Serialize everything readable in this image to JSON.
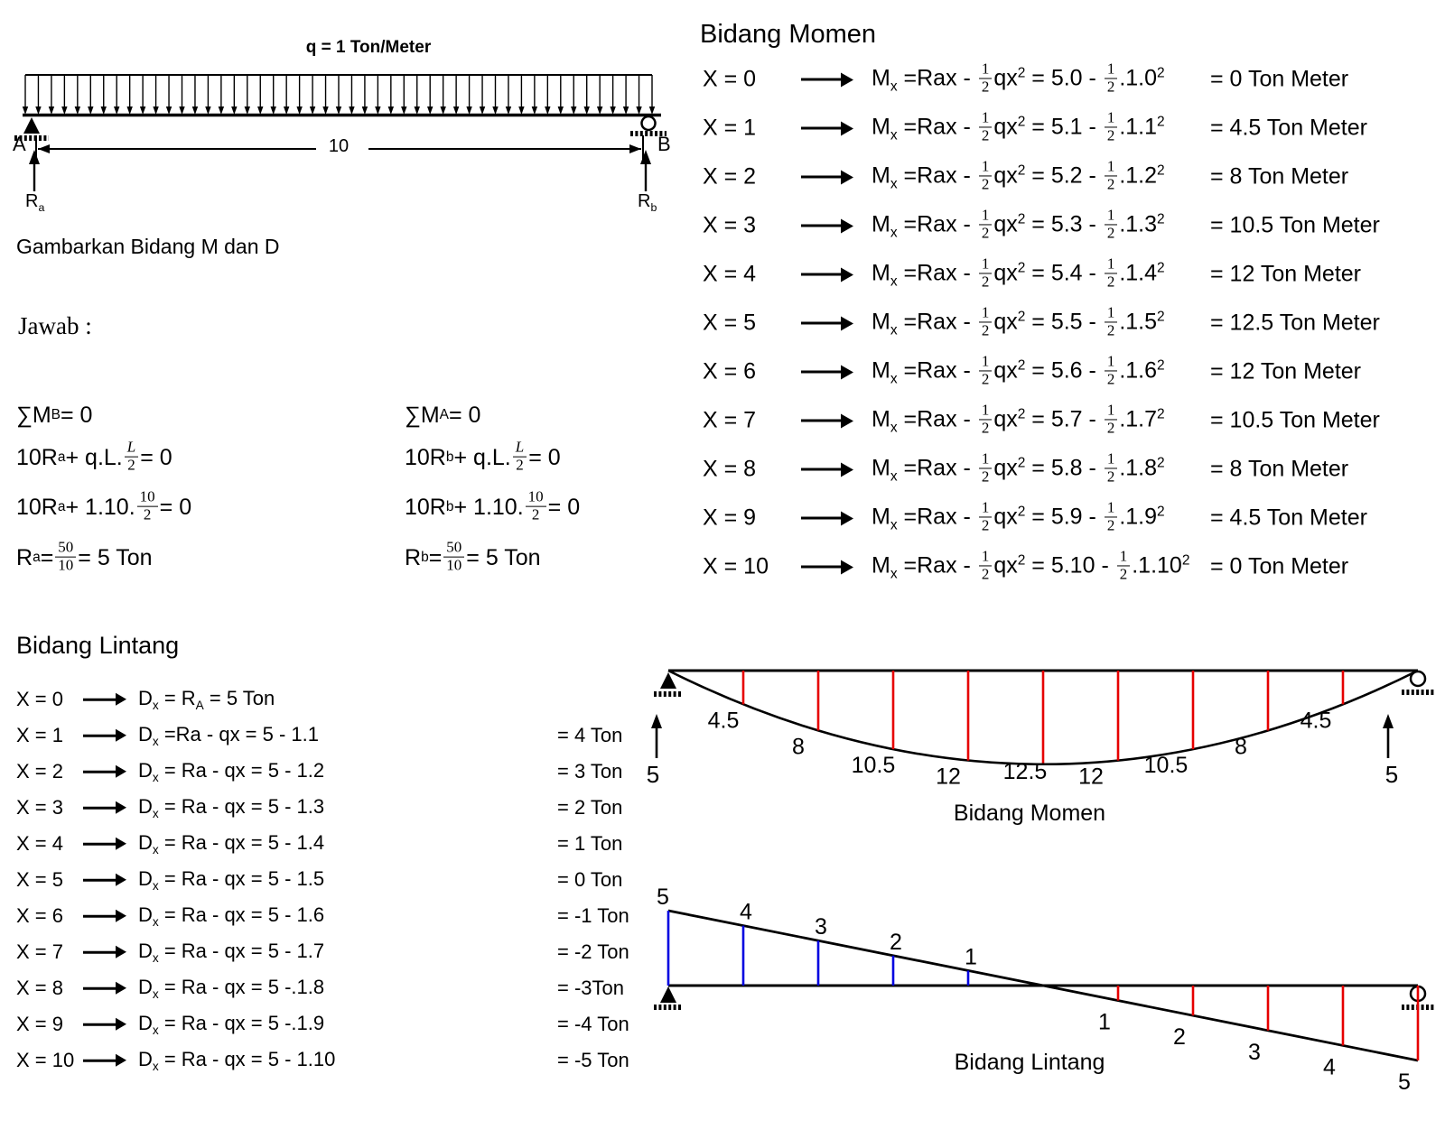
{
  "beam_figure": {
    "load_label": "q = 1 Ton/Meter",
    "support_a_label": "A",
    "support_b_label": "B",
    "span_label": "10",
    "reaction_a_label": "R~a~",
    "reaction_b_label": "R~b~"
  },
  "prompt_text": "Gambarkan Bidang M dan D",
  "answer_heading": "Jawab :",
  "reaction_equations": {
    "left": [
      "∑M~B~ = 0",
      "10R~a~ + q.L.{*L*/2} = 0",
      "10R~a~ + 1.10.{10/2} = 0",
      "R~a~ = {50/10} = 5 Ton"
    ],
    "right": [
      "∑M~A~ = 0",
      "10R~b~ + q.L.{*L*/2} = 0",
      "10R~b~ + 1.10.{10/2} = 0",
      "R~b~ = {50/10} = 5 Ton"
    ]
  },
  "momen_section": {
    "title": "Bidang Momen",
    "rows": [
      {
        "x": "X = 0",
        "eq": "M~x~ =Rax - {1/2}qx^2^ = 5.0 - {1/2}.1.0^2^",
        "result": "= 0 Ton Meter"
      },
      {
        "x": "X = 1",
        "eq": "M~x~ =Rax - {1/2}qx^2^ = 5.1 - {1/2}.1.1^2^",
        "result": "= 4.5 Ton Meter"
      },
      {
        "x": "X = 2",
        "eq": "M~x~ =Rax - {1/2}qx^2^ = 5.2 - {1/2}.1.2^2^",
        "result": "= 8 Ton Meter"
      },
      {
        "x": "X = 3",
        "eq": "M~x~ =Rax - {1/2}qx^2^ = 5.3 - {1/2}.1.3^2^",
        "result": "= 10.5 Ton Meter"
      },
      {
        "x": "X = 4",
        "eq": "M~x~ =Rax - {1/2}qx^2^ = 5.4 - {1/2}.1.4^2^",
        "result": "= 12 Ton Meter"
      },
      {
        "x": "X = 5",
        "eq": "M~x~ =Rax - {1/2}qx^2^ = 5.5 - {1/2}.1.5^2^",
        "result": "= 12.5 Ton Meter"
      },
      {
        "x": "X = 6",
        "eq": "M~x~ =Rax - {1/2}qx^2^ = 5.6 - {1/2}.1.6^2^",
        "result": "= 12 Ton Meter"
      },
      {
        "x": "X = 7",
        "eq": "M~x~ =Rax - {1/2}qx^2^ = 5.7 - {1/2}.1.7^2^",
        "result": "= 10.5 Ton Meter"
      },
      {
        "x": "X = 8",
        "eq": "M~x~ =Rax - {1/2}qx^2^ = 5.8 - {1/2}.1.8^2^",
        "result": "= 8 Ton Meter"
      },
      {
        "x": "X = 9",
        "eq": "M~x~ =Rax - {1/2}qx^2^ = 5.9 - {1/2}.1.9^2^",
        "result": "= 4.5 Ton Meter"
      },
      {
        "x": "X = 10",
        "eq": "M~x~ =Rax - {1/2}qx^2^ = 5.10 - {1/2}.1.10^2^",
        "result": "= 0 Ton Meter"
      }
    ]
  },
  "lintang_section": {
    "title": "Bidang Lintang",
    "rows": [
      {
        "x": "X = 0",
        "eq": "D~x~ = R~A~ = 5 Ton",
        "result": ""
      },
      {
        "x": "X = 1",
        "eq": "D~x~ =Ra - qx = 5 - 1.1",
        "result": "= 4 Ton"
      },
      {
        "x": "X = 2",
        "eq": "D~x~ = Ra - qx = 5 - 1.2",
        "result": "= 3 Ton"
      },
      {
        "x": "X = 3",
        "eq": "D~x~ = Ra - qx = 5 - 1.3",
        "result": "= 2 Ton"
      },
      {
        "x": "X = 4",
        "eq": "D~x~ = Ra - qx = 5 - 1.4",
        "result": "= 1 Ton"
      },
      {
        "x": "X = 5",
        "eq": "D~x~ = Ra - qx = 5 - 1.5",
        "result": "= 0 Ton"
      },
      {
        "x": "X = 6",
        "eq": "D~x~ = Ra - qx = 5 - 1.6",
        "result": "= -1 Ton"
      },
      {
        "x": "X = 7",
        "eq": "D~x~ = Ra - qx = 5 - 1.7",
        "result": "= -2 Ton"
      },
      {
        "x": "X = 8",
        "eq": "D~x~ = Ra - qx = 5 -.1.8",
        "result": "= -3Ton"
      },
      {
        "x": "X = 9",
        "eq": "D~x~ = Ra - qx = 5 -.1.9",
        "result": "= -4 Ton"
      },
      {
        "x": "X = 10",
        "eq": "D~x~ = Ra - qx = 5 - 1.10",
        "result": "= -5 Ton"
      }
    ]
  },
  "moment_diagram": {
    "caption": "Bidang Momen",
    "x": [
      0,
      1,
      2,
      3,
      4,
      5,
      6,
      7,
      8,
      9,
      10
    ],
    "values": [
      0,
      4.5,
      8,
      10.5,
      12,
      12.5,
      12,
      10.5,
      8,
      4.5,
      0
    ],
    "value_labels": [
      "4.5",
      "8",
      "10.5",
      "12",
      "12.5",
      "12",
      "10.5",
      "8",
      "4.5"
    ],
    "reaction_left": "5",
    "reaction_right": "5",
    "ordinate_color": "#e60000"
  },
  "shear_diagram": {
    "caption": "Bidang Lintang",
    "x": [
      0,
      1,
      2,
      3,
      4,
      5,
      6,
      7,
      8,
      9,
      10
    ],
    "values": [
      5,
      4,
      3,
      2,
      1,
      0,
      -1,
      -2,
      -3,
      -4,
      -5
    ],
    "positive_labels": [
      "5",
      "4",
      "3",
      "2",
      "1"
    ],
    "negative_labels": [
      "1",
      "2",
      "3",
      "4",
      "5"
    ],
    "positive_color": "#0000e0",
    "negative_color": "#e60000"
  },
  "chart_data": [
    {
      "type": "line",
      "title": "Bidang Momen",
      "x": [
        0,
        1,
        2,
        3,
        4,
        5,
        6,
        7,
        8,
        9,
        10
      ],
      "values": [
        0,
        4.5,
        8,
        10.5,
        12,
        12.5,
        12,
        10.5,
        8,
        4.5,
        0
      ]
    },
    {
      "type": "line",
      "title": "Bidang Lintang",
      "x": [
        0,
        1,
        2,
        3,
        4,
        5,
        6,
        7,
        8,
        9,
        10
      ],
      "values": [
        5,
        4,
        3,
        2,
        1,
        0,
        -1,
        -2,
        -3,
        -4,
        -5
      ]
    }
  ]
}
